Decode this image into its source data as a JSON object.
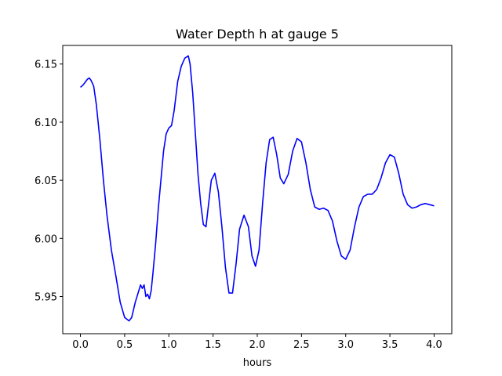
{
  "chart_data": {
    "type": "line",
    "title": "Water Depth h at gauge 5",
    "xlabel": "hours",
    "ylabel": "",
    "xlim": [
      -0.2,
      4.2
    ],
    "ylim": [
      5.918,
      6.166
    ],
    "grid": false,
    "xticks": [
      0.0,
      0.5,
      1.0,
      1.5,
      2.0,
      2.5,
      3.0,
      3.5,
      4.0
    ],
    "xtick_labels": [
      "0.0",
      "0.5",
      "1.0",
      "1.5",
      "2.0",
      "2.5",
      "3.0",
      "3.5",
      "4.0"
    ],
    "yticks": [
      5.95,
      6.0,
      6.05,
      6.1,
      6.15
    ],
    "ytick_labels": [
      "5.95",
      "6.00",
      "6.05",
      "6.10",
      "6.15"
    ],
    "series": [
      {
        "color": "#0000ff",
        "x": [
          0.0,
          0.03,
          0.06,
          0.08,
          0.1,
          0.12,
          0.15,
          0.18,
          0.22,
          0.26,
          0.3,
          0.35,
          0.4,
          0.45,
          0.5,
          0.55,
          0.58,
          0.62,
          0.66,
          0.68,
          0.7,
          0.72,
          0.74,
          0.76,
          0.78,
          0.8,
          0.82,
          0.85,
          0.88,
          0.91,
          0.94,
          0.97,
          1.0,
          1.03,
          1.06,
          1.1,
          1.14,
          1.18,
          1.22,
          1.24,
          1.27,
          1.3,
          1.33,
          1.36,
          1.39,
          1.42,
          1.45,
          1.48,
          1.52,
          1.56,
          1.6,
          1.64,
          1.68,
          1.72,
          1.76,
          1.8,
          1.85,
          1.9,
          1.94,
          1.98,
          2.02,
          2.06,
          2.1,
          2.14,
          2.18,
          2.22,
          2.26,
          2.3,
          2.35,
          2.4,
          2.45,
          2.5,
          2.55,
          2.6,
          2.65,
          2.7,
          2.75,
          2.8,
          2.85,
          2.9,
          2.95,
          3.0,
          3.05,
          3.1,
          3.15,
          3.2,
          3.25,
          3.3,
          3.35,
          3.4,
          3.45,
          3.5,
          3.55,
          3.6,
          3.65,
          3.7,
          3.75,
          3.8,
          3.85,
          3.9,
          3.95,
          4.0
        ],
        "y": [
          6.13,
          6.132,
          6.135,
          6.137,
          6.138,
          6.136,
          6.131,
          6.115,
          6.085,
          6.05,
          6.02,
          5.99,
          5.968,
          5.945,
          5.932,
          5.929,
          5.932,
          5.945,
          5.955,
          5.96,
          5.957,
          5.96,
          5.95,
          5.952,
          5.948,
          5.955,
          5.97,
          5.995,
          6.025,
          6.05,
          6.075,
          6.09,
          6.095,
          6.097,
          6.11,
          6.135,
          6.148,
          6.155,
          6.157,
          6.15,
          6.125,
          6.09,
          6.055,
          6.03,
          6.012,
          6.01,
          6.03,
          6.05,
          6.056,
          6.04,
          6.01,
          5.975,
          5.953,
          5.953,
          5.978,
          6.008,
          6.02,
          6.01,
          5.985,
          5.976,
          5.99,
          6.03,
          6.065,
          6.085,
          6.087,
          6.072,
          6.052,
          6.047,
          6.055,
          6.075,
          6.086,
          6.083,
          6.065,
          6.042,
          6.027,
          6.025,
          6.026,
          6.024,
          6.015,
          5.998,
          5.985,
          5.982,
          5.99,
          6.01,
          6.027,
          6.036,
          6.038,
          6.038,
          6.042,
          6.052,
          6.065,
          6.072,
          6.07,
          6.056,
          6.038,
          6.029,
          6.026,
          6.027,
          6.029,
          6.03,
          6.029,
          6.028
        ]
      }
    ]
  }
}
